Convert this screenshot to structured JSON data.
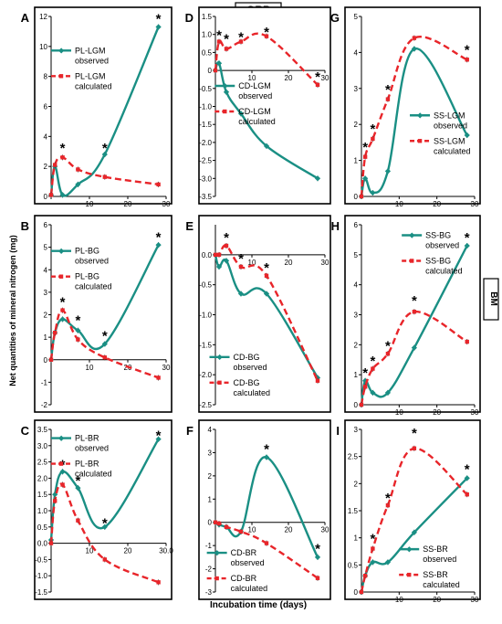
{
  "header": {
    "orp_label": "ORP",
    "bm_label": "BM"
  },
  "ylabel": "Net quantities of mineral nitrogen (mg)",
  "xlabel": "Incubation time (days)",
  "colors": {
    "observed": "#1a8f84",
    "calculated": "#e8252a",
    "axis": "#000000"
  },
  "chart_data": [
    {
      "letter": "A",
      "type": "line",
      "xlim": [
        0,
        30
      ],
      "ylim": [
        0,
        12
      ],
      "yticks": [
        0,
        2,
        4,
        6,
        8,
        10,
        12
      ],
      "ytick_labels": [
        "0",
        "2",
        "4",
        "6",
        "8",
        "10",
        "12"
      ],
      "xticks": [
        0,
        10,
        20,
        30
      ],
      "xtick_labels": [
        "0",
        "10",
        "20",
        "30"
      ],
      "series": [
        {
          "name": "PL-LGM\nobserved",
          "kind": "observed",
          "x": [
            0,
            1,
            3,
            7,
            14,
            28
          ],
          "y": [
            0.1,
            2.0,
            0.1,
            0.8,
            2.8,
            11.3
          ]
        },
        {
          "name": "PL-LGM\ncalculated",
          "kind": "calculated",
          "x": [
            0,
            1,
            3,
            7,
            14,
            28
          ],
          "y": [
            0.1,
            2.1,
            2.6,
            1.8,
            1.3,
            0.8
          ]
        }
      ],
      "stars": [
        [
          3,
          3.3
        ],
        [
          14,
          3.3
        ],
        [
          28,
          11.9
        ]
      ]
    },
    {
      "letter": "B",
      "type": "line",
      "xlim": [
        0,
        30
      ],
      "ylim": [
        -2,
        6
      ],
      "yticks": [
        -2,
        -1,
        0,
        1,
        2,
        3,
        4,
        5,
        6
      ],
      "ytick_labels": [
        "-2",
        "-1",
        "0",
        "1",
        "2",
        "3",
        "4",
        "5",
        "6"
      ],
      "xticks": [
        0,
        10,
        20,
        30
      ],
      "xtick_labels": [
        "0",
        "10",
        "20",
        "30"
      ],
      "series": [
        {
          "name": "PL-BG\nobserved",
          "kind": "observed",
          "x": [
            0,
            1,
            3,
            7,
            14,
            28
          ],
          "y": [
            0.0,
            1.2,
            1.8,
            1.3,
            0.7,
            5.1
          ]
        },
        {
          "name": "PL-BG\ncalculated",
          "kind": "calculated",
          "x": [
            0,
            1,
            3,
            7,
            14,
            28
          ],
          "y": [
            0.0,
            1.2,
            2.2,
            0.9,
            0.1,
            -0.8
          ]
        }
      ],
      "stars": [
        [
          3,
          2.6
        ],
        [
          7,
          1.8
        ],
        [
          14,
          1.1
        ],
        [
          28,
          5.5
        ]
      ]
    },
    {
      "letter": "C",
      "type": "line",
      "xlim": [
        0,
        30
      ],
      "ylim": [
        -1.5,
        3.5
      ],
      "yticks": [
        -1.5,
        -1.0,
        -0.5,
        0.0,
        0.5,
        1.0,
        1.5,
        2.0,
        2.5,
        3.0,
        3.5
      ],
      "ytick_labels": [
        "-1.5",
        "-1.0",
        "-0.5",
        "0.0",
        "0.5",
        "1.0",
        "1.5",
        "2.0",
        "2.5",
        "3.0",
        "3.5"
      ],
      "xticks": [
        0,
        10,
        20,
        30
      ],
      "xtick_labels": [
        "0",
        "10",
        "20",
        "30.0"
      ],
      "series": [
        {
          "name": "PL-BR\nobserved",
          "kind": "observed",
          "x": [
            0,
            1,
            3,
            7,
            14,
            28
          ],
          "y": [
            0.1,
            1.5,
            2.2,
            1.7,
            0.5,
            3.2
          ]
        },
        {
          "name": "PL-BR\ncalculated",
          "kind": "calculated",
          "x": [
            0,
            1,
            3,
            7,
            14,
            28
          ],
          "y": [
            0.0,
            1.3,
            1.8,
            0.7,
            -0.5,
            -1.2
          ]
        }
      ],
      "stars": [
        [
          3,
          2.45
        ],
        [
          7,
          1.95
        ],
        [
          14,
          0.65
        ],
        [
          28,
          3.35
        ]
      ]
    },
    {
      "letter": "D",
      "type": "line",
      "xlim": [
        0,
        30
      ],
      "ylim": [
        -3.5,
        1.5
      ],
      "yticks": [
        -3.5,
        -3.0,
        -2.5,
        -2.0,
        -1.5,
        -1.0,
        -0.5,
        0.0,
        0.5,
        1.0,
        1.5
      ],
      "ytick_labels": [
        "-3.5",
        "-3.0",
        "-2.5",
        "-2.0",
        "-1.5",
        "-1.0",
        "-0.5",
        "0",
        "0.5",
        "1.0",
        "1.5"
      ],
      "xticks": [
        0,
        10,
        20,
        30
      ],
      "xtick_labels": [
        "0",
        "10",
        "20",
        "30"
      ],
      "series": [
        {
          "name": "CD-LGM\nobserved",
          "kind": "observed",
          "x": [
            0,
            1,
            3,
            7,
            14,
            28
          ],
          "y": [
            0.0,
            0.2,
            -0.6,
            -1.2,
            -2.1,
            -3.0
          ]
        },
        {
          "name": "CD-LGM\ncalculated",
          "kind": "calculated",
          "x": [
            0,
            1,
            3,
            7,
            14,
            28
          ],
          "y": [
            0.0,
            0.8,
            0.6,
            0.8,
            0.95,
            -0.4
          ]
        }
      ],
      "stars": [
        [
          1,
          1.0
        ],
        [
          3,
          0.9
        ],
        [
          7,
          0.95
        ],
        [
          14,
          1.1
        ],
        [
          28,
          -0.15
        ]
      ]
    },
    {
      "letter": "E",
      "type": "line",
      "xlim": [
        0,
        30
      ],
      "ylim": [
        -2.5,
        0.5
      ],
      "yticks": [
        -2.5,
        -2.0,
        -1.5,
        -1.0,
        -0.5,
        0.0
      ],
      "ytick_labels": [
        "-2.5",
        "-2.0",
        "-1.5",
        "-1.0",
        "-0.5",
        "0.0"
      ],
      "xticks": [
        0,
        10,
        20,
        30
      ],
      "xtick_labels": [
        "0",
        "10",
        "20",
        "30"
      ],
      "series": [
        {
          "name": "CD-BG\nobserved",
          "kind": "observed",
          "x": [
            0,
            1,
            3,
            7,
            14,
            28
          ],
          "y": [
            0.0,
            -0.2,
            -0.1,
            -0.65,
            -0.65,
            -2.05
          ]
        },
        {
          "name": "CD-BG\ncalculated",
          "kind": "calculated",
          "x": [
            0,
            1,
            3,
            7,
            14,
            28
          ],
          "y": [
            0.0,
            0.0,
            0.15,
            -0.2,
            -0.35,
            -2.1
          ]
        }
      ],
      "stars": [
        [
          3,
          0.3
        ],
        [
          7,
          -0.05
        ],
        [
          14,
          -0.2
        ]
      ]
    },
    {
      "letter": "F",
      "type": "line",
      "xlim": [
        0,
        30
      ],
      "ylim": [
        -3,
        4
      ],
      "yticks": [
        -3,
        -2,
        -1,
        0,
        1,
        2,
        3,
        4
      ],
      "ytick_labels": [
        "-3",
        "-2",
        "-1",
        "0",
        "1",
        "2",
        "3",
        "4"
      ],
      "xticks": [
        0,
        10,
        20,
        30
      ],
      "xtick_labels": [
        "0",
        "10",
        "20",
        "30"
      ],
      "series": [
        {
          "name": "CD-BR\nobserved",
          "kind": "observed",
          "x": [
            0,
            1,
            3,
            7,
            14,
            28
          ],
          "y": [
            0.0,
            -0.1,
            -0.2,
            -0.4,
            2.8,
            -1.5
          ]
        },
        {
          "name": "CD-BR\ncalculated",
          "kind": "calculated",
          "x": [
            0,
            1,
            3,
            7,
            14,
            28
          ],
          "y": [
            0.0,
            -0.05,
            -0.2,
            -0.4,
            -0.9,
            -2.4
          ]
        }
      ],
      "stars": [
        [
          14,
          3.2
        ],
        [
          28,
          -1.1
        ]
      ]
    },
    {
      "letter": "G",
      "type": "line",
      "xlim": [
        0,
        30
      ],
      "ylim": [
        0,
        5
      ],
      "yticks": [
        0,
        1,
        2,
        3,
        4,
        5
      ],
      "ytick_labels": [
        "0",
        "1",
        "2",
        "3",
        "4",
        "5"
      ],
      "xticks": [
        0,
        10,
        20,
        30
      ],
      "xtick_labels": [
        "0",
        "10",
        "20",
        "30"
      ],
      "series": [
        {
          "name": "SS-LGM\nobserved",
          "kind": "observed",
          "x": [
            0,
            1,
            3,
            7,
            14,
            28
          ],
          "y": [
            0.0,
            0.5,
            0.1,
            0.7,
            4.1,
            1.7
          ]
        },
        {
          "name": "SS-LGM\ncalculated",
          "kind": "calculated",
          "x": [
            0,
            1,
            3,
            7,
            14,
            28
          ],
          "y": [
            0.0,
            1.1,
            1.6,
            2.7,
            4.4,
            3.8
          ]
        }
      ],
      "stars": [
        [
          1,
          1.4
        ],
        [
          3,
          1.9
        ],
        [
          7,
          3.0
        ],
        [
          28,
          4.1
        ]
      ]
    },
    {
      "letter": "H",
      "type": "line",
      "xlim": [
        0,
        30
      ],
      "ylim": [
        0,
        6
      ],
      "yticks": [
        0,
        1,
        2,
        3,
        4,
        5,
        6
      ],
      "ytick_labels": [
        "0",
        "1",
        "2",
        "3",
        "4",
        "5",
        "6"
      ],
      "xticks": [
        0,
        10,
        20,
        30
      ],
      "xtick_labels": [
        "0",
        "10",
        "20",
        "30"
      ],
      "series": [
        {
          "name": "SS-BG\nobserved",
          "kind": "observed",
          "x": [
            0,
            1,
            3,
            7,
            14,
            28
          ],
          "y": [
            0.0,
            0.8,
            0.4,
            0.4,
            1.9,
            5.3
          ]
        },
        {
          "name": "SS-BG\ncalculated",
          "kind": "calculated",
          "x": [
            0,
            1,
            3,
            7,
            14,
            28
          ],
          "y": [
            0.0,
            0.6,
            1.2,
            1.7,
            3.1,
            2.1
          ]
        }
      ],
      "stars": [
        [
          1,
          1.1
        ],
        [
          3,
          1.5
        ],
        [
          7,
          2.0
        ],
        [
          14,
          3.5
        ],
        [
          28,
          5.6
        ]
      ]
    },
    {
      "letter": "I",
      "type": "line",
      "xlim": [
        0,
        30
      ],
      "ylim": [
        0,
        3
      ],
      "yticks": [
        0,
        0.5,
        1.0,
        1.5,
        2.0,
        2.5,
        3.0
      ],
      "ytick_labels": [
        "0",
        "0.5",
        "1",
        "1.5",
        "2",
        "2.5",
        "3"
      ],
      "xticks": [
        0,
        10,
        20,
        30
      ],
      "xtick_labels": [
        "0",
        "10",
        "20",
        "30"
      ],
      "series": [
        {
          "name": "SS-BR\nobserved",
          "kind": "observed",
          "x": [
            0,
            1,
            3,
            7,
            14,
            28
          ],
          "y": [
            0.0,
            0.3,
            0.55,
            0.55,
            1.1,
            2.1
          ]
        },
        {
          "name": "SS-BR\ncalculated",
          "kind": "calculated",
          "x": [
            0,
            1,
            3,
            7,
            14,
            28
          ],
          "y": [
            0.0,
            0.3,
            0.8,
            1.6,
            2.65,
            1.8
          ]
        }
      ],
      "stars": [
        [
          3,
          1.0
        ],
        [
          7,
          1.75
        ],
        [
          14,
          2.95
        ],
        [
          28,
          2.28
        ]
      ]
    }
  ]
}
